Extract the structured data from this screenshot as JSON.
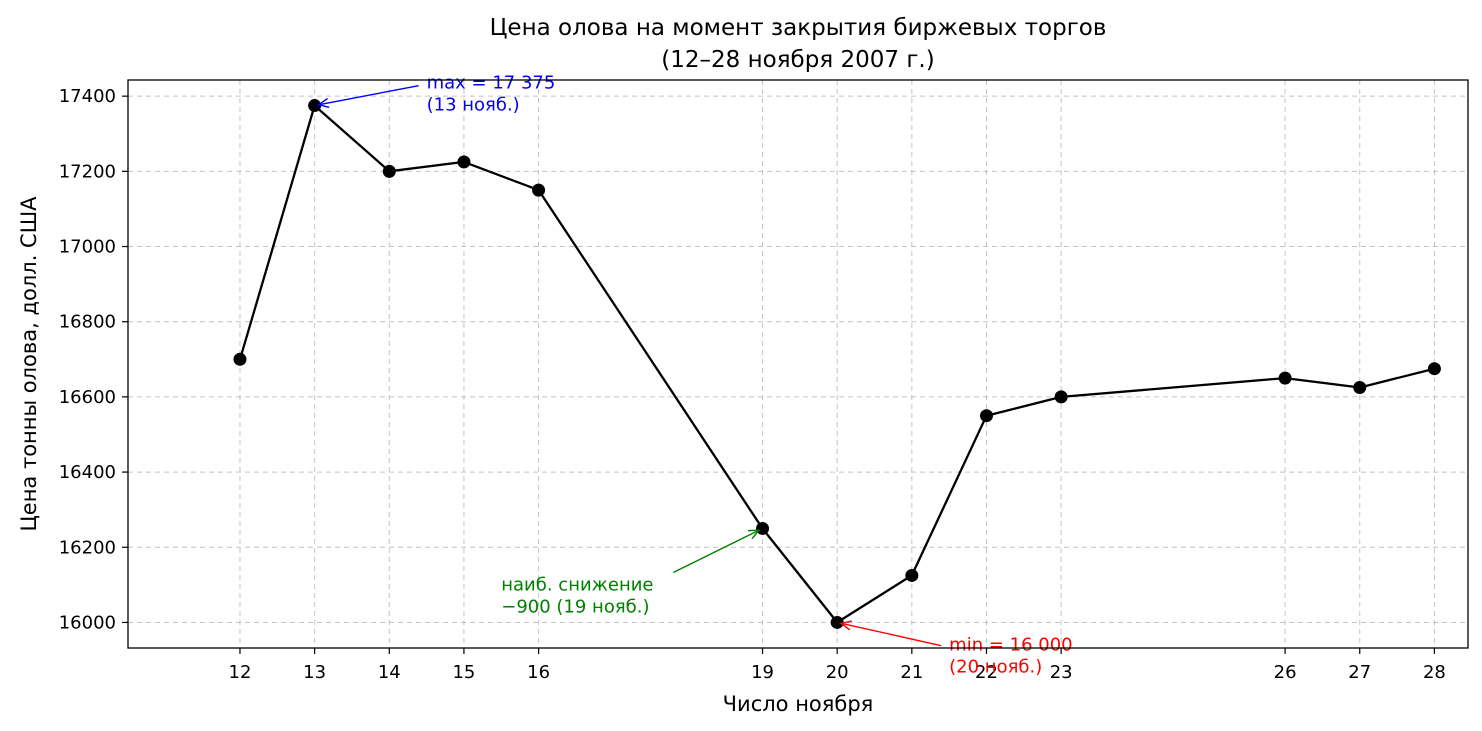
{
  "chart_data": {
    "type": "line",
    "title_line1": "Цена олова на момент закрытия биржевых торгов",
    "title_line2": "(12–28 ноября 2007 г.)",
    "xlabel": "Число ноября",
    "ylabel": "Цена тонны олова, долл. США",
    "x": [
      12,
      13,
      14,
      15,
      16,
      19,
      20,
      21,
      22,
      23,
      26,
      27,
      28
    ],
    "y": [
      16700,
      17375,
      17200,
      17225,
      17150,
      16250,
      16000,
      16125,
      16550,
      16600,
      16650,
      16625,
      16675
    ],
    "x_ticks": [
      "12",
      "13",
      "14",
      "15",
      "16",
      "19",
      "20",
      "21",
      "22",
      "23",
      "26",
      "27",
      "28"
    ],
    "y_ticks": [
      "16000",
      "16200",
      "16400",
      "16600",
      "16800",
      "17000",
      "17200",
      "17400"
    ],
    "xlim": [
      10.5,
      28.45
    ],
    "ylim": [
      15932,
      17443
    ],
    "grid": true,
    "line_color": "#000000",
    "marker_color": "#000000",
    "annotations": [
      {
        "id": "max",
        "line1": "max = 17 375",
        "line2": "(13 нояб.)",
        "color": "#0000ff",
        "point": [
          13,
          17375
        ],
        "text_at": [
          14.5,
          17420
        ]
      },
      {
        "id": "drop",
        "line1": "наиб. снижение",
        "line2": "−900 (19 нояб.)",
        "color": "#008000",
        "point": [
          19,
          16250
        ],
        "text_at": [
          15.5,
          16085
        ]
      },
      {
        "id": "min",
        "line1": "min = 16 000",
        "line2": "(20 нояб.)",
        "color": "#ff0000",
        "point": [
          20,
          16000
        ],
        "text_at": [
          21.5,
          15925
        ]
      }
    ]
  }
}
